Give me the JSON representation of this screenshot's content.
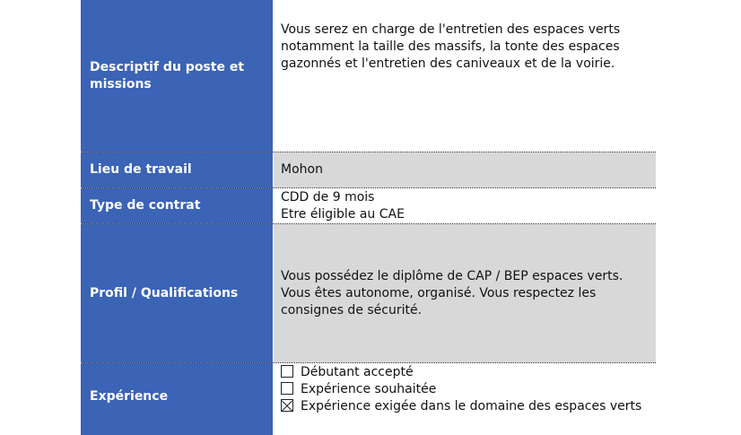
{
  "rows": [
    {
      "label": "Descriptif du poste et missions",
      "lines": [
        "Vous serez en charge de l'entretien des espaces verts notamment la taille des massifs, la tonte des espaces gazonnés et l'entretien des caniveaux et de la voirie."
      ]
    },
    {
      "label": "Lieu de travail",
      "lines": [
        "Mohon"
      ]
    },
    {
      "label": "Type de contrat",
      "lines": [
        "CDD de 9 mois",
        "Etre éligible au CAE"
      ]
    },
    {
      "label": "Profil / Qualifications",
      "lines": [
        "Vous possédez le diplôme de  CAP / BEP espaces verts. Vous êtes autonome, organisé. Vous respectez les consignes de sécurité."
      ]
    },
    {
      "label": "Expérience",
      "options": [
        {
          "text": "Débutant accepté",
          "checked": false
        },
        {
          "text": "Expérience souhaitée",
          "checked": false
        },
        {
          "text": "Expérience exigée dans le domaine des espaces verts",
          "checked": true
        }
      ]
    }
  ],
  "colors": {
    "label_bg": "#3b63b6",
    "alt_row_bg": "#d8d8d8"
  }
}
